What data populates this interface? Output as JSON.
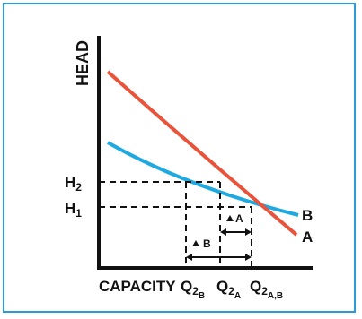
{
  "diagram": {
    "y_axis_label": "HEAD",
    "x_axis_label": "CAPACITY",
    "h2": {
      "base": "H",
      "sub": "2"
    },
    "h1": {
      "base": "H",
      "sub": "1"
    },
    "q2b": {
      "base": "Q",
      "sub1": "2",
      "sub2": "B"
    },
    "q2a": {
      "base": "Q",
      "sub1": "2",
      "sub2": "A"
    },
    "q2ab": {
      "base": "Q",
      "sub1": "2",
      "sub2": "A,B"
    },
    "delta_a": "A",
    "delta_b": "B",
    "curve_a_label": "A",
    "curve_b_label": "B"
  },
  "colors": {
    "frame": "#2e9bd6",
    "curve_a": "#e8533a",
    "curve_b": "#1ea9e1",
    "ink": "#111111"
  }
}
